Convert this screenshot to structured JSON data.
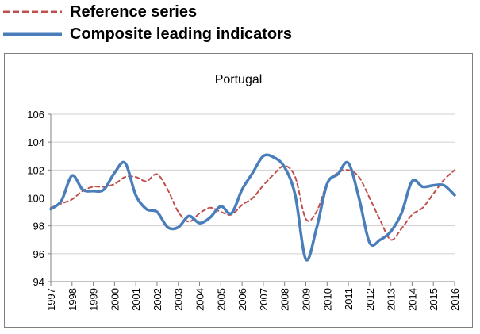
{
  "legend": {
    "items": [
      {
        "label": "Reference series",
        "color": "#c0504d",
        "style": "dashed"
      },
      {
        "label": "Composite leading indicators",
        "color": "#4a7ebb",
        "style": "solid"
      }
    ]
  },
  "chart_data": {
    "type": "line",
    "title": "Portugal",
    "xlabel": "",
    "ylabel": "",
    "ylim": [
      94,
      106
    ],
    "yticks": [
      94,
      96,
      98,
      100,
      102,
      104,
      106
    ],
    "xlim": [
      1997,
      2016
    ],
    "xticks": [
      "1997",
      "1998",
      "1999",
      "2000",
      "2001",
      "2002",
      "2003",
      "2004",
      "2005",
      "2006",
      "2007",
      "2008",
      "2009",
      "2010",
      "2011",
      "2012",
      "2013",
      "2014",
      "2015",
      "2016"
    ],
    "grid": "horizontal",
    "series": [
      {
        "name": "Reference series",
        "color": "#c0504d",
        "style": "dashed",
        "x": [
          1997.0,
          1997.5,
          1998.0,
          1998.5,
          1999.0,
          1999.5,
          2000.0,
          2000.5,
          2001.0,
          2001.5,
          2002.0,
          2002.5,
          2003.0,
          2003.5,
          2004.0,
          2004.5,
          2005.0,
          2005.5,
          2006.0,
          2006.5,
          2007.0,
          2007.5,
          2008.0,
          2008.5,
          2009.0,
          2009.5,
          2010.0,
          2010.5,
          2011.0,
          2011.5,
          2012.0,
          2012.5,
          2013.0,
          2013.5,
          2014.0,
          2014.5,
          2015.0,
          2015.5,
          2016.0
        ],
        "values": [
          99.3,
          99.6,
          99.9,
          100.5,
          100.8,
          100.8,
          101.0,
          101.5,
          101.5,
          101.2,
          101.7,
          100.6,
          99.0,
          98.3,
          98.9,
          99.3,
          99.0,
          98.8,
          99.5,
          100.0,
          100.9,
          101.7,
          102.3,
          101.5,
          98.5,
          99.0,
          101.0,
          101.8,
          102.0,
          101.5,
          100.0,
          98.4,
          97.0,
          97.8,
          98.8,
          99.3,
          100.3,
          101.3,
          102.0
        ]
      },
      {
        "name": "Composite leading indicators",
        "color": "#4a7ebb",
        "style": "solid",
        "x": [
          1997.0,
          1997.5,
          1998.0,
          1998.5,
          1999.0,
          1999.5,
          2000.0,
          2000.5,
          2001.0,
          2001.5,
          2002.0,
          2002.5,
          2003.0,
          2003.5,
          2004.0,
          2004.5,
          2005.0,
          2005.5,
          2006.0,
          2006.5,
          2007.0,
          2007.5,
          2008.0,
          2008.5,
          2009.0,
          2009.5,
          2010.0,
          2010.5,
          2011.0,
          2011.5,
          2012.0,
          2012.5,
          2013.0,
          2013.5,
          2014.0,
          2014.5,
          2015.0,
          2015.5,
          2016.0
        ],
        "values": [
          99.2,
          99.8,
          101.6,
          100.6,
          100.5,
          100.6,
          101.8,
          102.5,
          100.2,
          99.2,
          99.0,
          97.9,
          97.9,
          98.7,
          98.2,
          98.6,
          99.4,
          98.9,
          100.6,
          101.8,
          103.0,
          102.9,
          102.2,
          100.2,
          95.6,
          97.8,
          101.0,
          101.7,
          102.5,
          100.0,
          96.8,
          97.0,
          97.6,
          98.9,
          101.2,
          100.8,
          100.9,
          100.9,
          100.2
        ]
      }
    ]
  }
}
